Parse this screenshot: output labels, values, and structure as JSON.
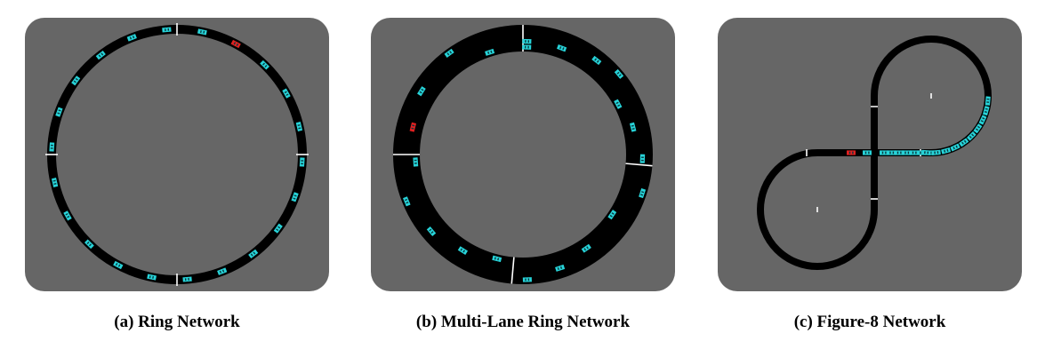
{
  "colors": {
    "background": "#666666",
    "road": "#000000",
    "car": "#27d3d8",
    "car_controlled": "#e02020",
    "marker": "#ffffff"
  },
  "panels": [
    {
      "id": "a",
      "caption": "(a) Ring Network",
      "network": "ring",
      "lanes": 1
    },
    {
      "id": "b",
      "caption": "(b) Multi-Lane Ring Network",
      "network": "ring",
      "lanes": 4
    },
    {
      "id": "c",
      "caption": "(c) Figure-8 Network",
      "network": "figure-8",
      "lanes": 1
    }
  ]
}
